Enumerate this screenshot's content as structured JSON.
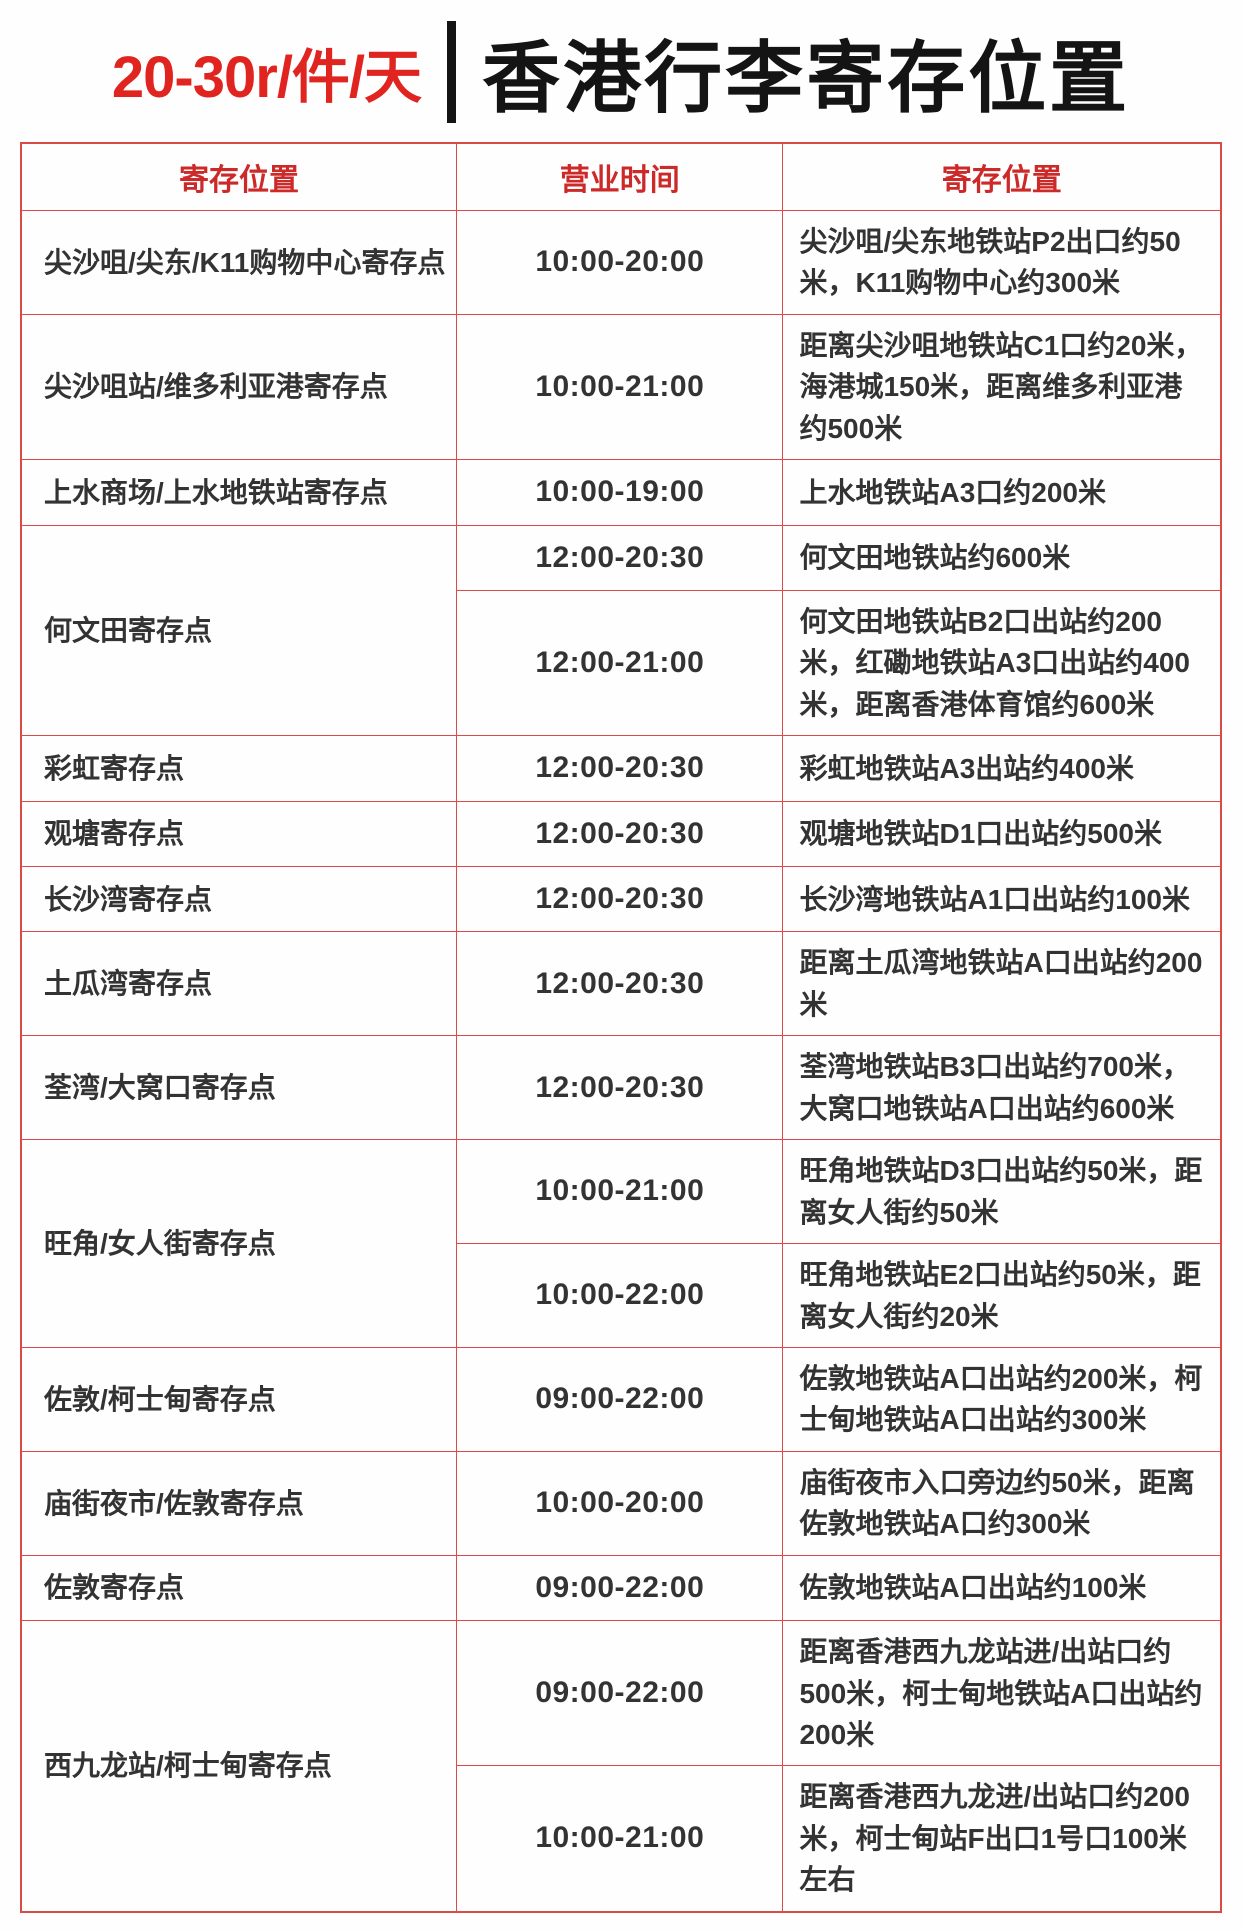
{
  "title": {
    "price_tag": "20-30r/件/天",
    "main": "香港行李寄存位置"
  },
  "colors": {
    "accent_red": "#e0241f",
    "header_text_red": "#cc2a28",
    "border_red": "#da4a46",
    "body_text": "#333333",
    "title_black": "#141414",
    "background": "#ffffff"
  },
  "table": {
    "headers": [
      "寄存位置",
      "营业时间",
      "寄存位置"
    ],
    "rows": [
      {
        "location": "尖沙咀/尖东/K11购物中心寄存点",
        "entries": [
          {
            "hours": "10:00-20:00",
            "detail": "尖沙咀/尖东地铁站P2出口约50米，K11购物中心约300米"
          }
        ]
      },
      {
        "location": "尖沙咀站/维多利亚港寄存点",
        "entries": [
          {
            "hours": "10:00-21:00",
            "detail": "距离尖沙咀地铁站C1口约20米，海港城150米，距离维多利亚港约500米"
          }
        ]
      },
      {
        "location": "上水商场/上水地铁站寄存点",
        "entries": [
          {
            "hours": "10:00-19:00",
            "detail": "上水地铁站A3口约200米"
          }
        ]
      },
      {
        "location": "何文田寄存点",
        "entries": [
          {
            "hours": "12:00-20:30",
            "detail": "何文田地铁站约600米"
          },
          {
            "hours": "12:00-21:00",
            "detail": "何文田地铁站B2口出站约200米，红磡地铁站A3口出站约400米，距离香港体育馆约600米"
          }
        ]
      },
      {
        "location": "彩虹寄存点",
        "entries": [
          {
            "hours": "12:00-20:30",
            "detail": "彩虹地铁站A3出站约400米"
          }
        ]
      },
      {
        "location": "观塘寄存点",
        "entries": [
          {
            "hours": "12:00-20:30",
            "detail": "观塘地铁站D1口出站约500米"
          }
        ]
      },
      {
        "location": "长沙湾寄存点",
        "entries": [
          {
            "hours": "12:00-20:30",
            "detail": "长沙湾地铁站A1口出站约100米"
          }
        ]
      },
      {
        "location": "土瓜湾寄存点",
        "entries": [
          {
            "hours": "12:00-20:30",
            "detail": "距离土瓜湾地铁站A口出站约200米"
          }
        ]
      },
      {
        "location": "荃湾/大窝口寄存点",
        "entries": [
          {
            "hours": "12:00-20:30",
            "detail": "荃湾地铁站B3口出站约700米，大窝口地铁站A口出站约600米"
          }
        ]
      },
      {
        "location": "旺角/女人街寄存点",
        "entries": [
          {
            "hours": "10:00-21:00",
            "detail": "旺角地铁站D3口出站约50米，距离女人街约50米"
          },
          {
            "hours": "10:00-22:00",
            "detail": "旺角地铁站E2口出站约50米，距离女人街约20米"
          }
        ]
      },
      {
        "location": "佐敦/柯士甸寄存点",
        "entries": [
          {
            "hours": "09:00-22:00",
            "detail": "佐敦地铁站A口出站约200米，柯士甸地铁站A口出站约300米"
          }
        ]
      },
      {
        "location": "庙街夜市/佐敦寄存点",
        "entries": [
          {
            "hours": "10:00-20:00",
            "detail": "庙街夜市入口旁边约50米，距离佐敦地铁站A口约300米"
          }
        ]
      },
      {
        "location": "佐敦寄存点",
        "entries": [
          {
            "hours": "09:00-22:00",
            "detail": "佐敦地铁站A口出站约100米"
          }
        ]
      },
      {
        "location": "西九龙站/柯士甸寄存点",
        "entries": [
          {
            "hours": "09:00-22:00",
            "detail": "距离香港西九龙站进/出站口约500米，柯士甸地铁站A口出站约200米"
          },
          {
            "hours": "10:00-21:00",
            "detail": "距离香港西九龙进/出站口约200米，柯士甸站F出口1号口100米左右"
          }
        ]
      }
    ]
  }
}
